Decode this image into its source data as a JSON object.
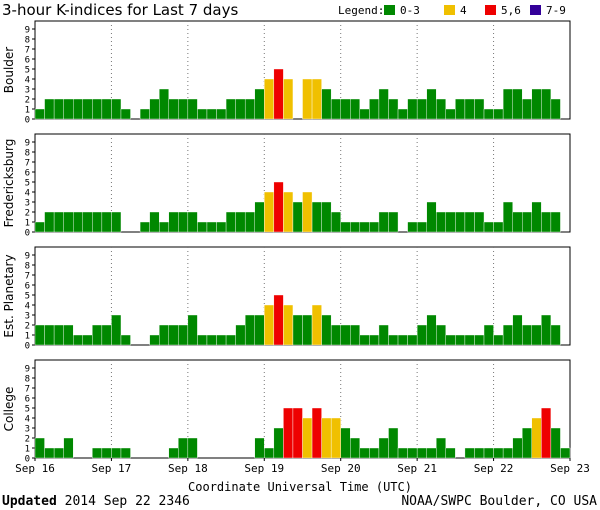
{
  "header": {
    "title": "3-hour K-indices for Last 7 days",
    "legend_label": "Legend:",
    "legend": [
      {
        "label": "0-3",
        "color": "#008800"
      },
      {
        "label": "4",
        "color": "#f0c000"
      },
      {
        "label": "5,6",
        "color": "#ee0000"
      },
      {
        "label": "7-9",
        "color": "#330099"
      }
    ]
  },
  "footer": {
    "updated_label": "Updated",
    "updated_value": "2014 Sep 22 2346",
    "credit": "NOAA/SWPC Boulder, CO USA"
  },
  "chart_data": {
    "type": "bar",
    "xlabel": "Coordinate Universal Time (UTC)",
    "x_ticks": [
      "Sep 16",
      "Sep 17",
      "Sep 18",
      "Sep 19",
      "Sep 20",
      "Sep 21",
      "Sep 22",
      "Sep 23"
    ],
    "y_ticks": [
      0,
      1,
      2,
      3,
      4,
      5,
      6,
      7,
      8,
      9
    ],
    "ylim": [
      0,
      9
    ],
    "bins_per_day": 8,
    "grid": "dotted vertical at day boundaries",
    "series": [
      {
        "name": "Boulder",
        "values": [
          1,
          2,
          2,
          2,
          2,
          2,
          2,
          2,
          2,
          1,
          0,
          1,
          2,
          3,
          2,
          2,
          2,
          1,
          1,
          1,
          2,
          2,
          2,
          3,
          4,
          5,
          4,
          0,
          4,
          4,
          3,
          2,
          2,
          2,
          1,
          2,
          3,
          2,
          1,
          2,
          2,
          3,
          2,
          1,
          2,
          2,
          2,
          1,
          1,
          3,
          3,
          2,
          3,
          3,
          2,
          0
        ]
      },
      {
        "name": "Fredericksburg",
        "values": [
          1,
          2,
          2,
          2,
          2,
          2,
          2,
          2,
          2,
          0,
          0,
          1,
          2,
          1,
          2,
          2,
          2,
          1,
          1,
          1,
          2,
          2,
          2,
          3,
          4,
          5,
          4,
          3,
          4,
          3,
          3,
          2,
          1,
          1,
          1,
          1,
          2,
          2,
          0,
          1,
          1,
          3,
          2,
          2,
          2,
          2,
          2,
          1,
          1,
          3,
          2,
          2,
          3,
          2,
          2,
          0
        ]
      },
      {
        "name": "Est. Planetary",
        "values": [
          2,
          2,
          2,
          2,
          1,
          1,
          2,
          2,
          3,
          1,
          0,
          0,
          1,
          2,
          2,
          2,
          3,
          1,
          1,
          1,
          1,
          2,
          3,
          3,
          4,
          5,
          4,
          3,
          3,
          4,
          3,
          2,
          2,
          2,
          1,
          1,
          2,
          1,
          1,
          1,
          2,
          3,
          2,
          1,
          1,
          1,
          1,
          2,
          1,
          2,
          3,
          2,
          2,
          3,
          2,
          0
        ]
      },
      {
        "name": "College",
        "values": [
          2,
          1,
          1,
          2,
          0,
          0,
          1,
          1,
          1,
          1,
          0,
          0,
          0,
          0,
          1,
          2,
          2,
          0,
          0,
          0,
          0,
          0,
          0,
          2,
          1,
          3,
          5,
          5,
          4,
          5,
          4,
          4,
          3,
          2,
          1,
          1,
          2,
          3,
          1,
          1,
          1,
          1,
          2,
          1,
          0,
          1,
          1,
          1,
          1,
          1,
          2,
          3,
          4,
          5,
          3,
          1
        ]
      }
    ]
  }
}
